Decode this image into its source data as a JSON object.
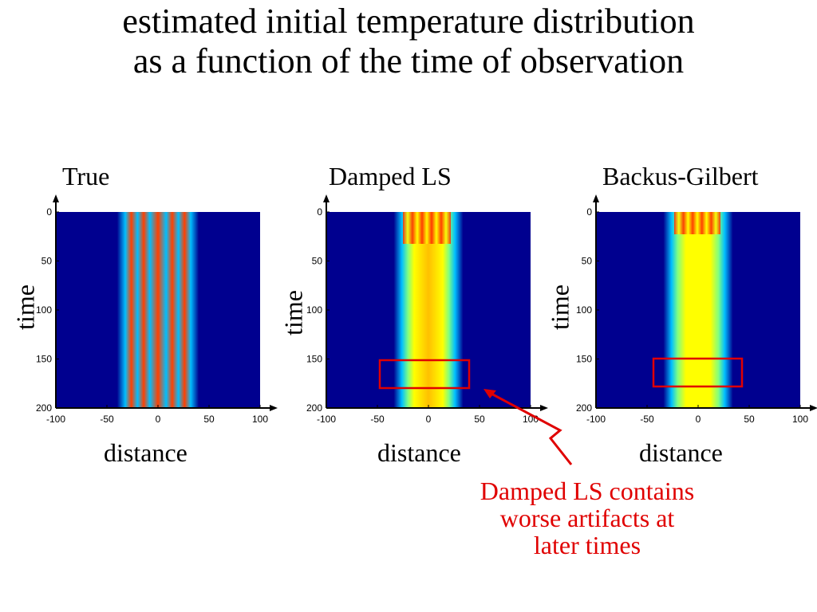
{
  "slide": {
    "title_line1": "estimated initial temperature distribution",
    "title_line2": "as a function of the time of observation",
    "annotation": "Damped LS contains worse artifacts at later times"
  },
  "colors": {
    "background_low": "#00008f",
    "hot": "#ffff00",
    "edge": "#00bfff",
    "highlight": "#e00000",
    "annotation": "#e00000"
  },
  "chart_data": [
    {
      "type": "heatmap",
      "title": "True",
      "xlabel": "distance",
      "ylabel": "time",
      "xlim": [
        -100,
        100
      ],
      "ylim": [
        0,
        200
      ],
      "xticks": [
        "-100",
        "-50",
        "0",
        "50",
        "100"
      ],
      "yticks": [
        "0",
        "50",
        "100",
        "150",
        "200"
      ],
      "description_features": {
        "band_xlim": [
          -23,
          23
        ],
        "stripes": 4,
        "time_invariant": true
      }
    },
    {
      "type": "heatmap",
      "title": "Damped LS",
      "xlabel": "distance",
      "ylabel": "time",
      "xlim": [
        -100,
        100
      ],
      "ylim": [
        0,
        200
      ],
      "xticks": [
        "-100",
        "-50",
        "0",
        "50",
        "100"
      ],
      "yticks": [
        "0",
        "50",
        "100",
        "150",
        "200"
      ],
      "description_features": {
        "band_xlim": [
          -25,
          25
        ],
        "striped_until_time": 30,
        "highlight_box": {
          "x": [
            -45,
            42
          ],
          "t": [
            150,
            178
          ]
        }
      }
    },
    {
      "type": "heatmap",
      "title": "Backus-Gilbert",
      "xlabel": "distance",
      "ylabel": "time",
      "xlim": [
        -100,
        100
      ],
      "ylim": [
        0,
        200
      ],
      "xticks": [
        "-100",
        "-50",
        "0",
        "50",
        "100"
      ],
      "yticks": [
        "0",
        "50",
        "100",
        "150",
        "200"
      ],
      "description_features": {
        "band_xlim": [
          -25,
          25
        ],
        "striped_until_time": 30,
        "highlight_box": {
          "x": [
            -43,
            45
          ],
          "t": [
            150,
            178
          ]
        }
      }
    }
  ]
}
